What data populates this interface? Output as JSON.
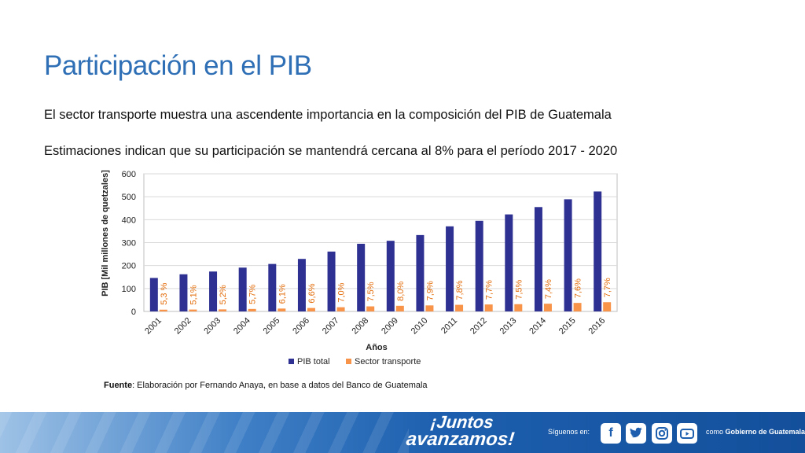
{
  "slide": {
    "title": "Participación en el PIB",
    "paragraph1": "El sector transporte muestra una ascendente importancia en la composición del PIB de Guatemala",
    "paragraph2": "Estimaciones indican que su participación se mantendrá cercana al 8% para el período 2017 - 2020",
    "source_label": "Fuente",
    "source_text": ": Elaboración por Fernando Anaya, en base a datos del Banco de Guatemala"
  },
  "footer": {
    "slogan_line1": "¡Juntos",
    "slogan_line2": "avanzamos!",
    "follow_text": "Síguenos en:",
    "gov_prefix": "como",
    "gov_name": "Gobierno de Guatemala",
    "icons": [
      "facebook-icon",
      "twitter-icon",
      "instagram-icon",
      "youtube-icon"
    ]
  },
  "chart_data": {
    "type": "bar",
    "xlabel": "Años",
    "ylabel": "PIB [Mil millones de quetzales]",
    "ylim": [
      0,
      600
    ],
    "yticks": [
      0,
      100,
      200,
      300,
      400,
      500,
      600
    ],
    "grid": true,
    "legend_position": "bottom",
    "categories": [
      "2001",
      "2002",
      "2003",
      "2004",
      "2005",
      "2006",
      "2007",
      "2008",
      "2009",
      "2010",
      "2011",
      "2012",
      "2013",
      "2014",
      "2015",
      "2016"
    ],
    "series": [
      {
        "name": "PIB total",
        "color": "#2e3192",
        "values": [
          146,
          162,
          174,
          191,
          207,
          229,
          261,
          295,
          308,
          333,
          371,
          395,
          423,
          455,
          489,
          523
        ]
      },
      {
        "name": "Sector transporte",
        "color": "#f7944a",
        "values": [
          7.7,
          8.3,
          9.0,
          10.9,
          12.6,
          15.1,
          18.3,
          22.1,
          24.6,
          26.3,
          28.9,
          30.4,
          31.7,
          33.7,
          37.2,
          40.3
        ]
      }
    ],
    "data_labels": [
      "5,3 %",
      "5,1%",
      "5,2%",
      "5,7%",
      "6,1%",
      "6,6%",
      "7,0%",
      "7,5%",
      "8,0%",
      "7,9%",
      "7,8%",
      "7,7%",
      "7,5%",
      "7,4%",
      "7,6%",
      "7,7%"
    ],
    "label_color": "#e36c09"
  }
}
